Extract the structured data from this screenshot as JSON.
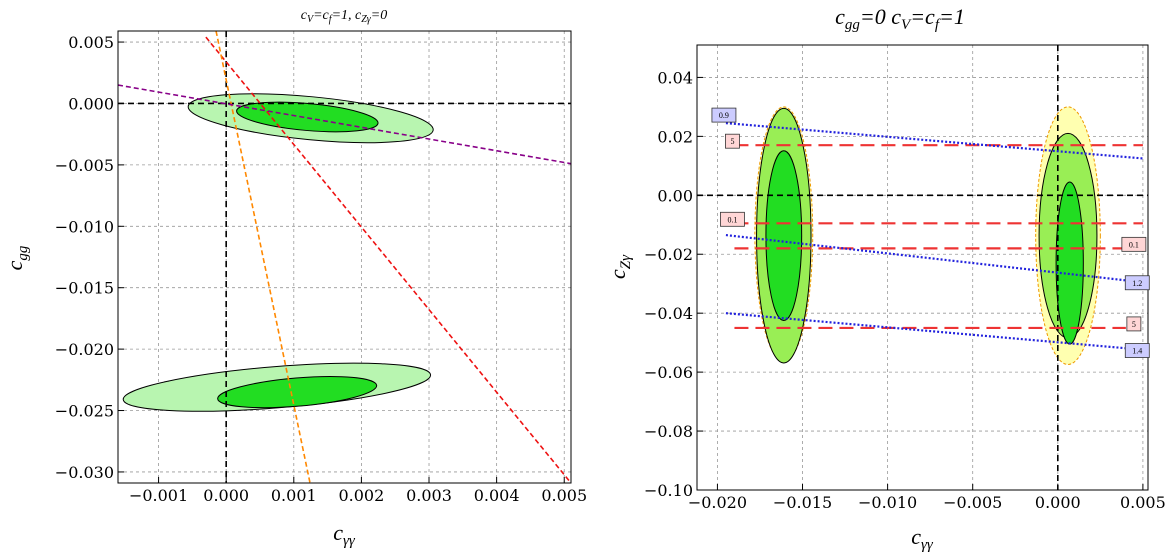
{
  "chart_data": [
    {
      "type": "contour",
      "title": {
        "main": "c",
        "sub1": "V",
        "mid1": "=c",
        "sub2": "f",
        "mid2": "=1, c",
        "sub3": "Zγ",
        "end": "=0"
      },
      "xlabel": {
        "main": "c",
        "sub": "γγ"
      },
      "ylabel": {
        "main": "c",
        "sub": "gg"
      },
      "xlim": [
        -0.0016,
        0.0051
      ],
      "ylim": [
        -0.0309,
        0.0059
      ],
      "xticks": [
        -0.001,
        0.0,
        0.001,
        0.002,
        0.003,
        0.004,
        0.005
      ],
      "xtick_labels": [
        "−0.001",
        "0.000",
        "0.001",
        "0.002",
        "0.003",
        "0.004",
        "0.005"
      ],
      "yticks": [
        0.005,
        0.0,
        -0.005,
        -0.01,
        -0.015,
        -0.02,
        -0.025,
        -0.03
      ],
      "ytick_labels": [
        "0.005",
        "0.000",
        "−0.005",
        "−0.010",
        "−0.015",
        "−0.020",
        "−0.025",
        "−0.030"
      ],
      "grid": true,
      "regions": [
        {
          "kind": "outer",
          "cx": 0.00125,
          "cy": -0.0012,
          "rx": 0.00182,
          "ry": 0.00175,
          "tilt_deg": 5.5,
          "color": "#b8f5b0"
        },
        {
          "kind": "inner",
          "cx": 0.0012,
          "cy": -0.0011,
          "rx": 0.00105,
          "ry": 0.0011,
          "tilt_deg": 5.0,
          "color": "#22dd22"
        },
        {
          "kind": "outer",
          "cx": 0.00075,
          "cy": -0.0231,
          "rx": 0.00228,
          "ry": 0.00168,
          "tilt_deg": -4.6,
          "color": "#b8f5b0"
        },
        {
          "kind": "inner",
          "cx": 0.00105,
          "cy": -0.0235,
          "rx": 0.00118,
          "ry": 0.00115,
          "tilt_deg": -4.8,
          "color": "#22dd22"
        }
      ],
      "lines": [
        {
          "name": "red",
          "color": "#ee1111",
          "points": [
            [
              -0.0003,
              0.0054
            ],
            [
              0.0051,
              -0.0309
            ]
          ]
        },
        {
          "name": "orange",
          "color": "#ff8800",
          "points": [
            [
              -0.00015,
              0.0059
            ],
            [
              0.00124,
              -0.0309
            ]
          ]
        },
        {
          "name": "purple",
          "color": "#880088",
          "points": [
            [
              -0.0016,
              0.0015
            ],
            [
              0.0051,
              -0.0049
            ]
          ]
        }
      ],
      "reference_lines": {
        "x": 0,
        "y": 0
      }
    },
    {
      "type": "contour",
      "title": {
        "main": "c",
        "sub1": "gg",
        "mid1": "=0  c",
        "sub2": "V",
        "mid2": "=c",
        "sub3": "f",
        "end": "=1"
      },
      "xlabel": {
        "main": "c",
        "sub": "γγ"
      },
      "ylabel": {
        "main": "c",
        "sub": "Zγ"
      },
      "xlim": [
        -0.0212,
        0.0053
      ],
      "ylim": [
        -0.1,
        0.051
      ],
      "xticks": [
        -0.02,
        -0.015,
        -0.01,
        -0.005,
        0.0,
        0.005
      ],
      "xtick_labels": [
        "−0.020",
        "−0.015",
        "−0.010",
        "−0.005",
        "0.000",
        "0.005"
      ],
      "yticks": [
        0.04,
        0.02,
        0.0,
        -0.02,
        -0.04,
        -0.06,
        -0.08,
        -0.1
      ],
      "ytick_labels": [
        "0.04",
        "0.02",
        "0.00",
        "−0.02",
        "−0.04",
        "−0.06",
        "−0.08",
        "−0.10"
      ],
      "grid": true,
      "regions": [
        {
          "kind": "yellow",
          "cx": -0.0161,
          "cy": -0.0132,
          "rx": 0.0017,
          "ry": 0.0432,
          "tilt_deg": 0,
          "color": "#ffffb0"
        },
        {
          "kind": "outer",
          "cx": -0.0161,
          "cy": -0.0137,
          "rx": 0.0016,
          "ry": 0.0432,
          "tilt_deg": 0,
          "color": "#99ee55"
        },
        {
          "kind": "inner",
          "cx": -0.0161,
          "cy": -0.0137,
          "rx": 0.00105,
          "ry": 0.0288,
          "tilt_deg": 0,
          "color": "#22dd22"
        },
        {
          "kind": "yellow",
          "cx": 0.0006,
          "cy": -0.0137,
          "rx": 0.0019,
          "ry": 0.0437,
          "tilt_deg": 0,
          "color": "#ffffb0"
        },
        {
          "kind": "outer",
          "cx": 0.0006,
          "cy": -0.0137,
          "rx": 0.0017,
          "ry": 0.0347,
          "tilt_deg": 0,
          "color": "#99ee55"
        },
        {
          "kind": "inner",
          "cx": 0.0007,
          "cy": -0.023,
          "rx": 0.0008,
          "ry": 0.0275,
          "tilt_deg": 0,
          "color": "#22dd22"
        }
      ],
      "dashed_lines": [
        {
          "color": "#ee3333",
          "y": 0.017,
          "x": [
            -0.019,
            0.005
          ],
          "label": "5",
          "label_side": "left"
        },
        {
          "color": "#ee3333",
          "y": -0.0095,
          "x": [
            -0.019,
            0.005
          ],
          "label": "0.1",
          "label_side": "left"
        },
        {
          "color": "#ee3333",
          "y": -0.018,
          "x": [
            -0.019,
            0.004
          ],
          "label": "0.1",
          "label_side": "right"
        },
        {
          "color": "#ee3333",
          "y": -0.045,
          "x": [
            -0.019,
            0.004
          ],
          "label": "5",
          "label_side": "right"
        }
      ],
      "dotted_lines": [
        {
          "color": "#2222dd",
          "points": [
            [
              -0.0195,
              0.0245
            ],
            [
              0.005,
              0.0125
            ]
          ],
          "label": "0.9",
          "label_side": "left"
        },
        {
          "color": "#2222dd",
          "points": [
            [
              -0.0195,
              -0.0135
            ],
            [
              0.0042,
              -0.029
            ]
          ],
          "label": "1.2",
          "label_side": "right"
        },
        {
          "color": "#2222dd",
          "points": [
            [
              -0.0195,
              -0.04
            ],
            [
              0.0042,
              -0.052
            ]
          ],
          "label": "1.4",
          "label_side": "right"
        }
      ],
      "reference_lines": {
        "x": 0,
        "y": 0
      }
    }
  ]
}
